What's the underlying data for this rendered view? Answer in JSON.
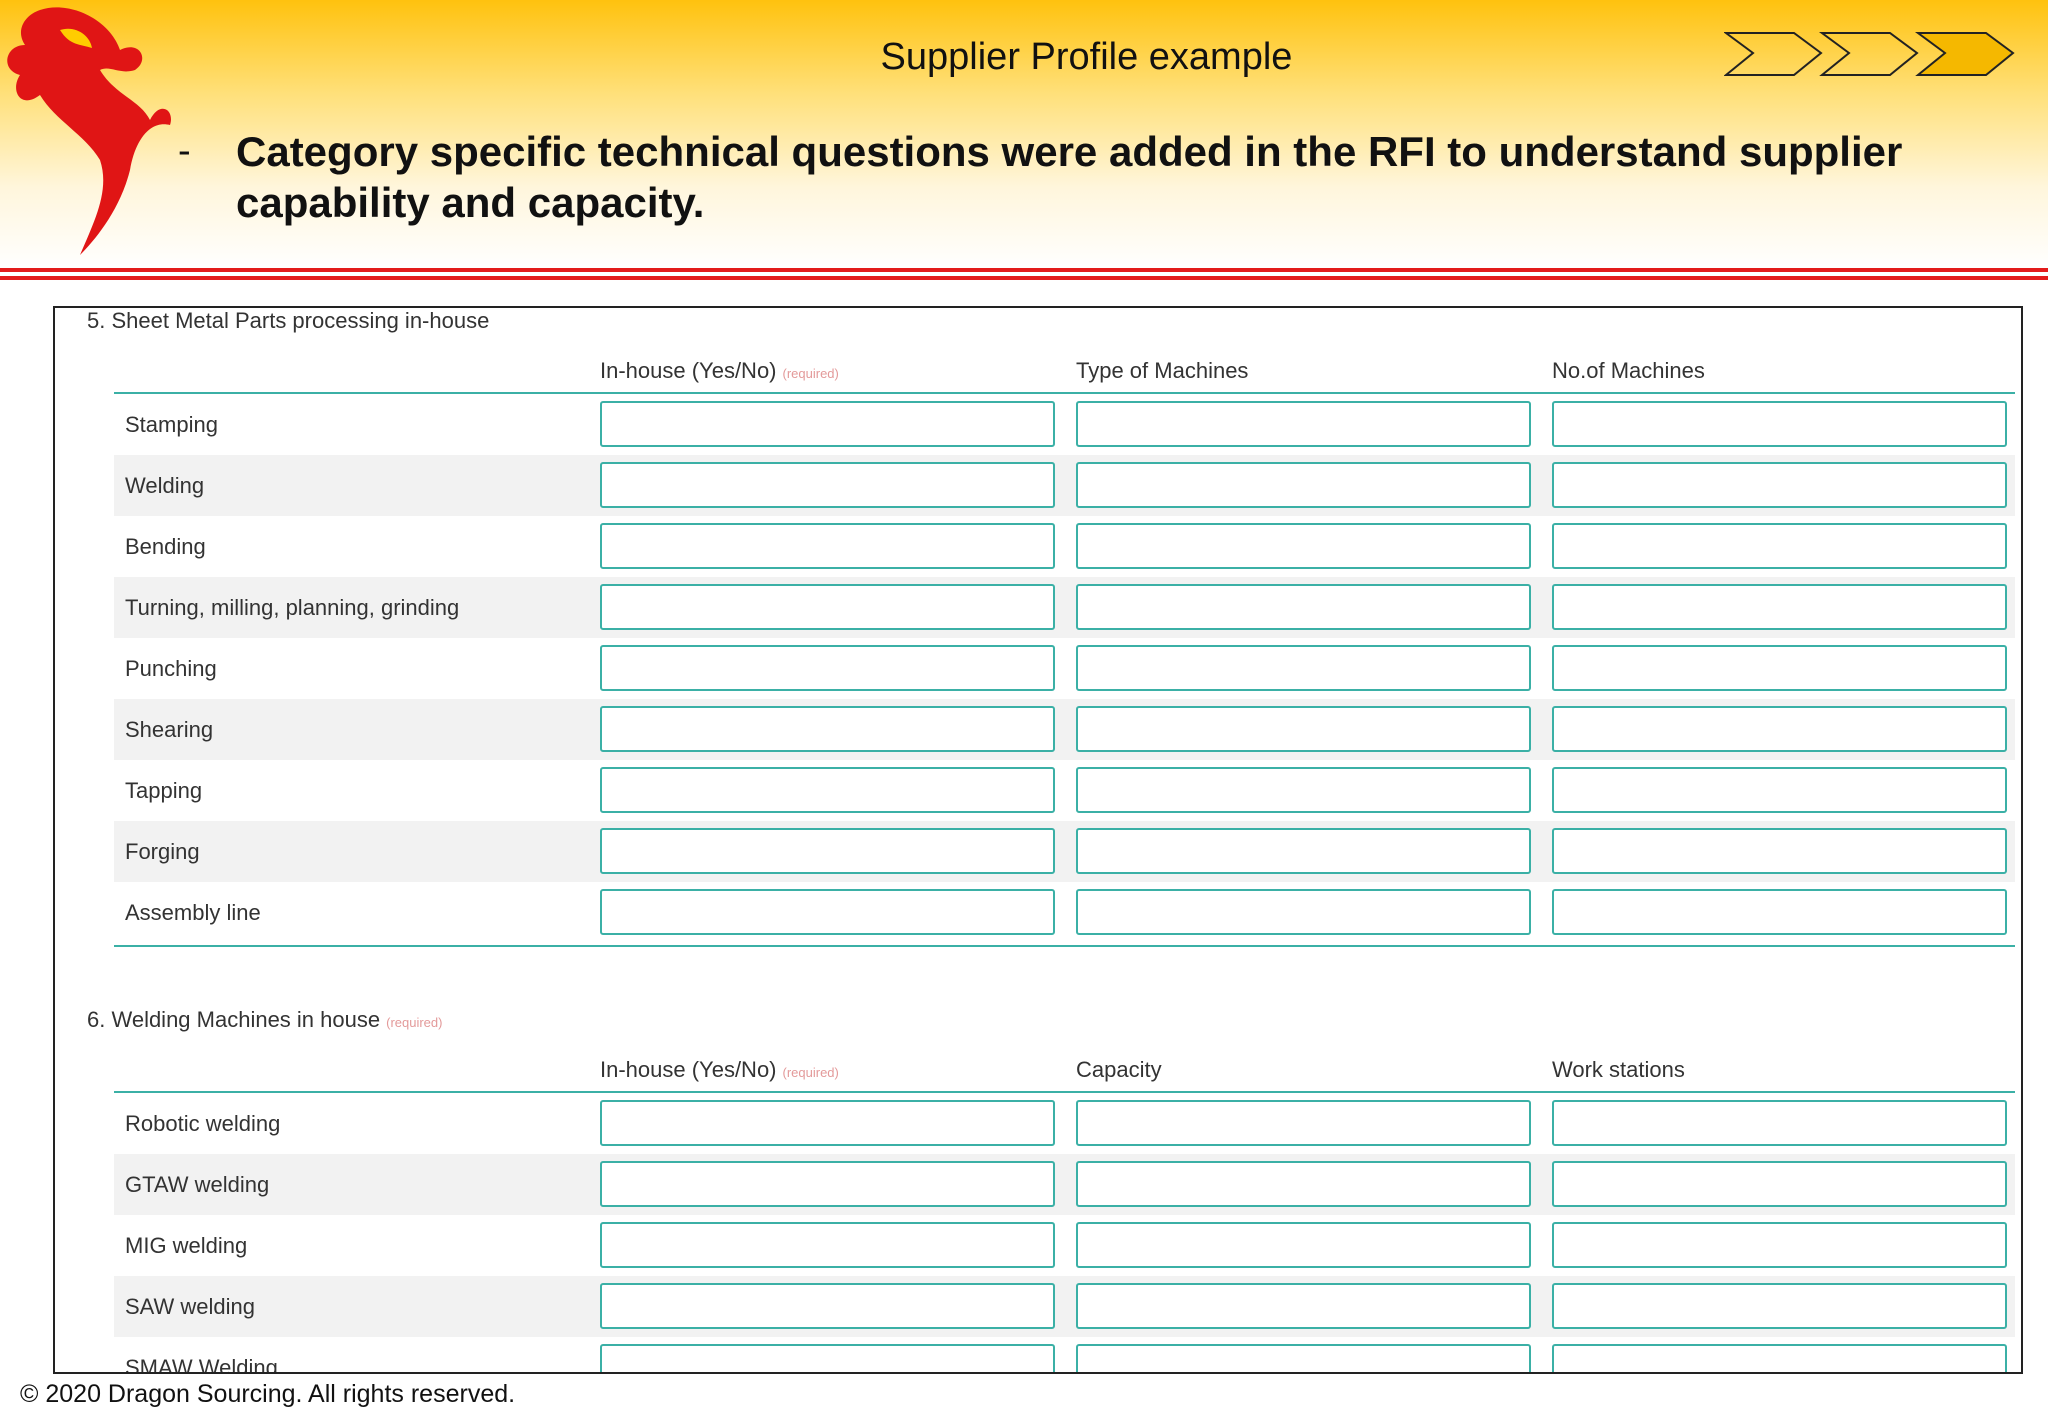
{
  "header": {
    "title": "Supplier Profile example",
    "bullet": "Category specific technical questions were added in the RFI to understand supplier capability and capacity."
  },
  "sections": [
    {
      "title": "5. Sheet Metal Parts processing in-house",
      "columns": [
        "In-house (Yes/No)",
        "Type of Machines",
        "No.of Machines"
      ],
      "column_note": "(required)",
      "rows": [
        "Stamping",
        "Welding",
        "Bending",
        "Turning, milling, planning, grinding",
        "Punching",
        "Shearing",
        "Tapping",
        "Forging",
        "Assembly line"
      ]
    },
    {
      "title": "6. Welding Machines in house",
      "title_note": "(required)",
      "columns": [
        "In-house (Yes/No)",
        "Capacity",
        "Work stations"
      ],
      "column_note": "(required)",
      "rows": [
        "Robotic welding",
        "GTAW welding",
        "MIG welding",
        "SAW welding",
        "SMAW Welding"
      ]
    }
  ],
  "footer": "© 2020 Dragon Sourcing. All rights reserved."
}
